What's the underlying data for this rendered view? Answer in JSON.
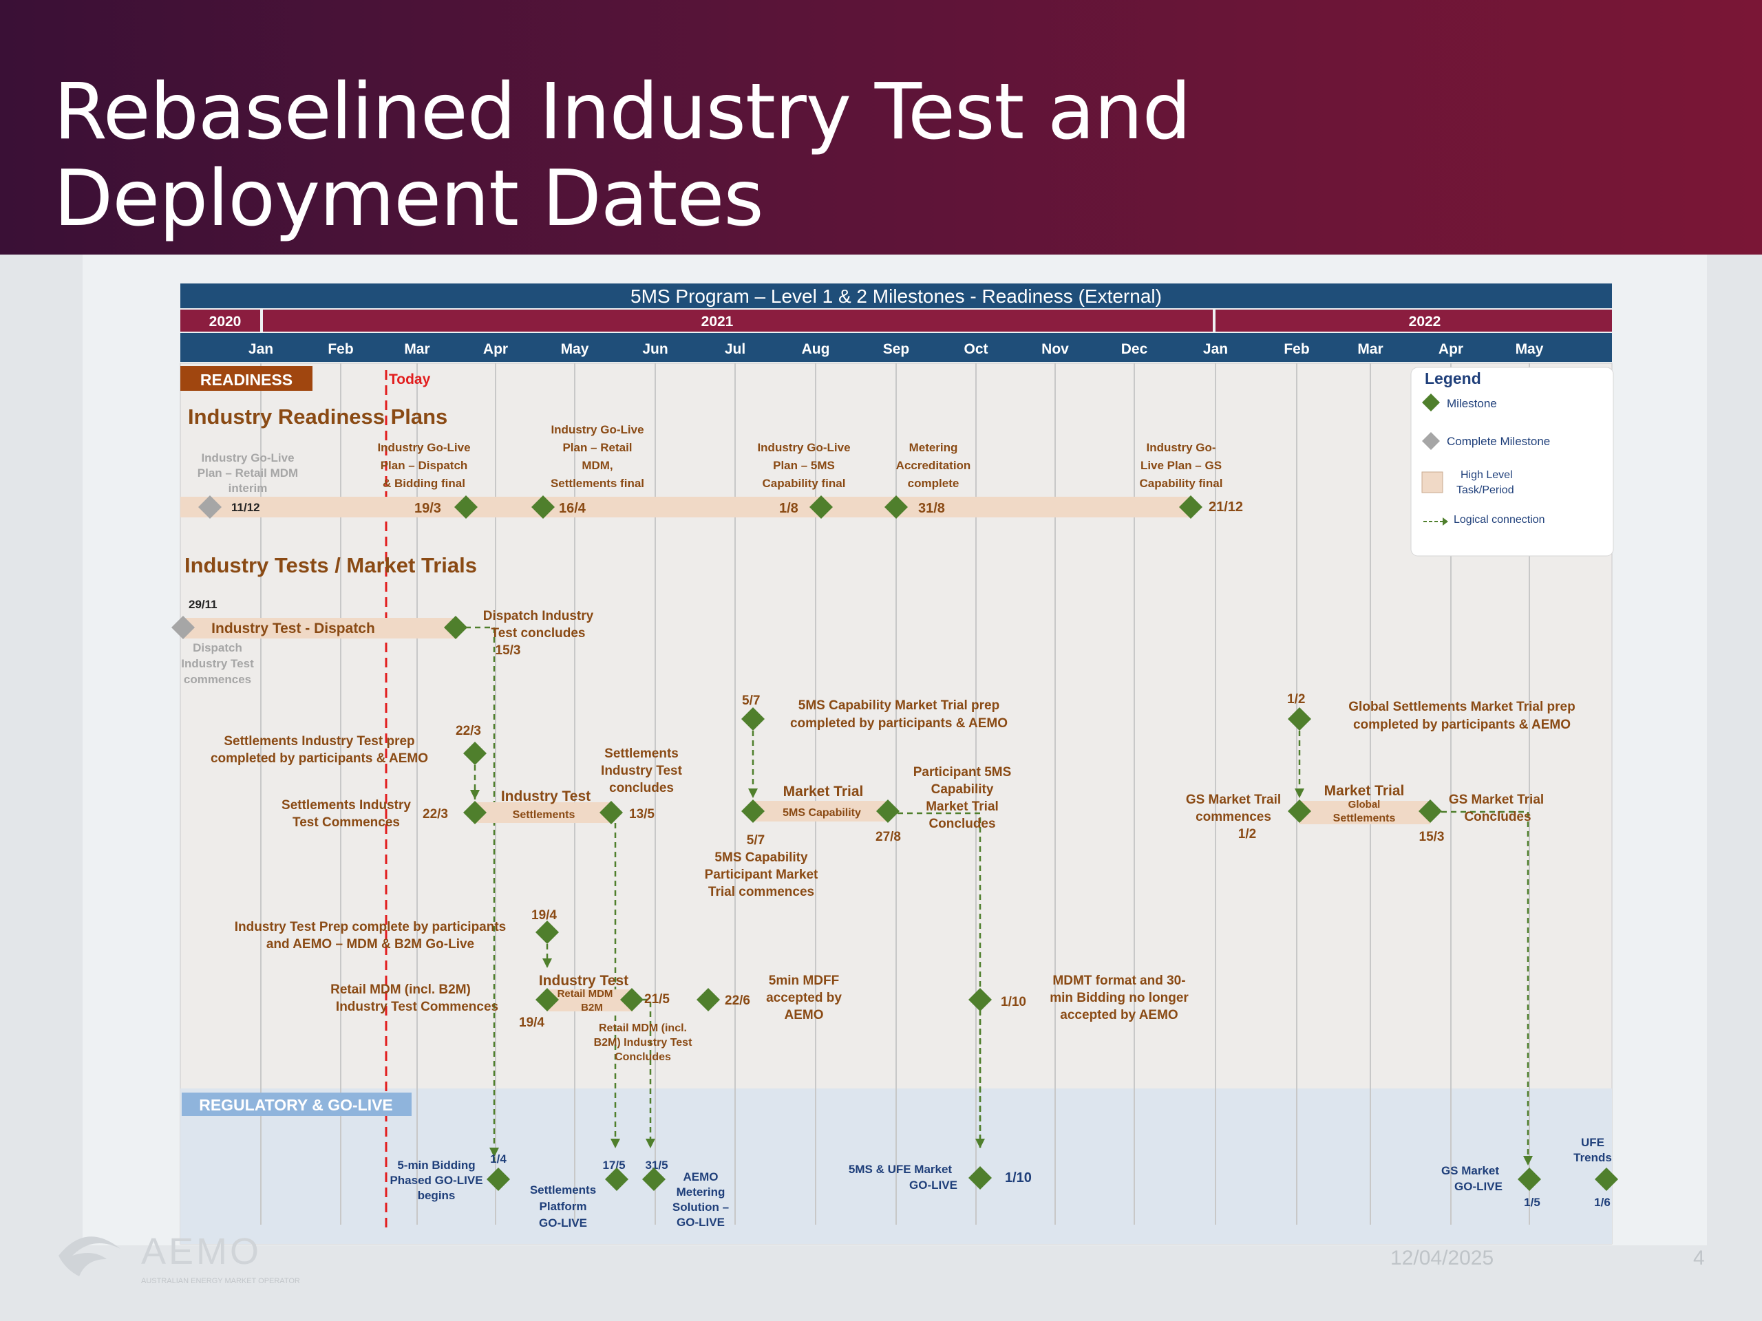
{
  "slide": {
    "title_line1": "Rebaselined Industry Test and",
    "title_line2": "Deployment Dates",
    "date": "12/04/2025",
    "page": "4",
    "logo_text": "AEMO",
    "logo_subtext": "AUSTRALIAN ENERGY MARKET OPERATOR"
  },
  "gantt": {
    "title": "5MS Program – Level 1 & 2 Milestones - Readiness (External)",
    "years": [
      "2020",
      "2021",
      "2022"
    ],
    "months": [
      "Jan",
      "Feb",
      "Mar",
      "Apr",
      "May",
      "Jun",
      "Jul",
      "Aug",
      "Sep",
      "Oct",
      "Nov",
      "Dec",
      "Jan",
      "Feb",
      "Mar",
      "Apr",
      "May"
    ],
    "today_label": "Today",
    "readiness_banner": "READINESS",
    "regulatory_banner": "REGULATORY & GO-LIVE",
    "section_plans": "Industry Readiness Plans",
    "section_tests": "Industry Tests / Market Trials"
  },
  "legend": {
    "title": "Legend",
    "milestone": "Milestone",
    "complete": "Complete Milestone",
    "task_line1": "High Level",
    "task_line2": "Task/Period",
    "logical": "Logical connection"
  },
  "plans": {
    "retail_l1": "Industry Go-Live",
    "retail_l2": "Plan – Retail MDM",
    "retail_l3": "interim",
    "retail_date": "11/12",
    "dispatch_l1": "Industry Go-Live",
    "dispatch_l2": "Plan – Dispatch",
    "dispatch_l3": "& Bidding final",
    "dispatch_date": "19/3",
    "mdm_l1": "Industry Go-Live",
    "mdm_l2": "Plan – Retail",
    "mdm_l3": "MDM,",
    "mdm_l4": "Settlements final",
    "mdm_date": "16/4",
    "fivems_l1": "Industry Go-Live",
    "fivems_l2": "Plan – 5MS",
    "fivems_l3": "Capability final",
    "fivems_date": "1/8",
    "meter_l1": "Metering",
    "meter_l2": "Accreditation",
    "meter_l3": "complete",
    "meter_date": "31/8",
    "gs_l1": "Industry Go-",
    "gs_l2": "Live Plan – GS",
    "gs_l3": "Capability final",
    "gs_date": "21/12"
  },
  "tests": {
    "dispatch_start_date": "29/11",
    "dispatch_bar": "Industry Test - Dispatch",
    "dispatch_comm_l1": "Dispatch",
    "dispatch_comm_l2": "Industry Test",
    "dispatch_comm_l3": "commences",
    "dispatch_end_l1": "Dispatch Industry",
    "dispatch_end_l2": "Test concludes",
    "dispatch_end_date": "15/3",
    "fivems_prep_date": "5/7",
    "fivems_prep_l1": "5MS Capability Market Trial prep",
    "fivems_prep_l2": "completed by participants & AEMO",
    "gs_prep_date": "1/2",
    "gs_prep_l1": "Global Settlements Market Trial prep",
    "gs_prep_l2": "completed by participants & AEMO",
    "sett_prep_l1": "Settlements Industry Test prep",
    "sett_prep_l2": "completed by participants & AEMO",
    "sett_prep_date": "22/3",
    "sett_end_l1": "Settlements",
    "sett_end_l2": "Industry Test",
    "sett_end_l3": "concludes",
    "sett_comm_l1": "Settlements Industry",
    "sett_comm_l2": "Test Commences",
    "sett_comm_date": "22/3",
    "sett_bar_l1": "Industry Test",
    "sett_bar_l2": "Settlements",
    "sett_end_date": "13/5",
    "mt_bar_l1": "Market Trial",
    "mt_bar_l2": "5MS Capability",
    "mt_end_date": "27/8",
    "mt_conc_l1": "Participant 5MS",
    "mt_conc_l2": "Capability",
    "mt_conc_l3": "Market Trial",
    "mt_conc_l4": "Concludes",
    "mt_comm_date": "5/7",
    "mt_comm_l1": "5MS Capability",
    "mt_comm_l2": "Participant Market",
    "mt_comm_l3": "Trial commences",
    "gs_comm_l1": "GS Market Trail",
    "gs_comm_l2": "commences",
    "gs_comm_date": "1/2",
    "gs_bar_l1": "Market Trial",
    "gs_bar_l2": "Global",
    "gs_bar_l3": "Settlements",
    "gs_conc_l1": "GS Market Trial",
    "gs_conc_l2": "Concludes",
    "gs_conc_date": "15/3",
    "prep_date": "19/4",
    "prep_l1": "Industry Test Prep complete by participants",
    "prep_l2": "and AEMO – MDM & B2M Go-Live",
    "retail_comm_l1": "Retail MDM (incl. B2M)",
    "retail_comm_l2": "Industry Test Commences",
    "retail_bar_l1": "Industry Test",
    "retail_bar_l2": "Retail MDM",
    "retail_bar_l3": "B2M",
    "retail_start_date": "19/4",
    "retail_end_date": "21/5",
    "retail_conc_l1": "Retail MDM (incl.",
    "retail_conc_l2": "B2M) Industry Test",
    "retail_conc_l3": "Concludes",
    "mdff_date": "22/6",
    "mdff_l1": "5min MDFF",
    "mdff_l2": "accepted by",
    "mdff_l3": "AEMO",
    "mdmt_date": "1/10",
    "mdmt_l1": "MDMT format and 30-",
    "mdmt_l2": "min Bidding no longer",
    "mdmt_l3": "accepted by AEMO"
  },
  "golive": {
    "bid_date": "1/4",
    "bid_l1": "5-min Bidding",
    "bid_l2": "Phased GO-LIVE",
    "bid_l3": "begins",
    "sett_date": "17/5",
    "sett_l1": "Settlements",
    "sett_l2": "Platform",
    "sett_l3": "GO-LIVE",
    "meter_date": "31/5",
    "meter_l1": "AEMO",
    "meter_l2": "Metering",
    "meter_l3": "Solution –",
    "meter_l4": "GO-LIVE",
    "ufe_date": "1/10",
    "ufe_l1": "5MS & UFE Market",
    "ufe_l2": "GO-LIVE",
    "gs_date": "1/5",
    "gs_l1": "GS Market",
    "gs_l2": "GO-LIVE",
    "trends_date": "1/6",
    "trends_l1": "UFE",
    "trends_l2": "Trends"
  },
  "colors": {
    "milestone": "#4f7f2c",
    "complete": "#a6a6a6",
    "task": "#f0d9c6",
    "header_blue": "#1f4e79",
    "year_band": "#8b1d3f",
    "today": "#e21d1d",
    "label": "#8a4a14",
    "golive_label": "#1f3f7a"
  }
}
